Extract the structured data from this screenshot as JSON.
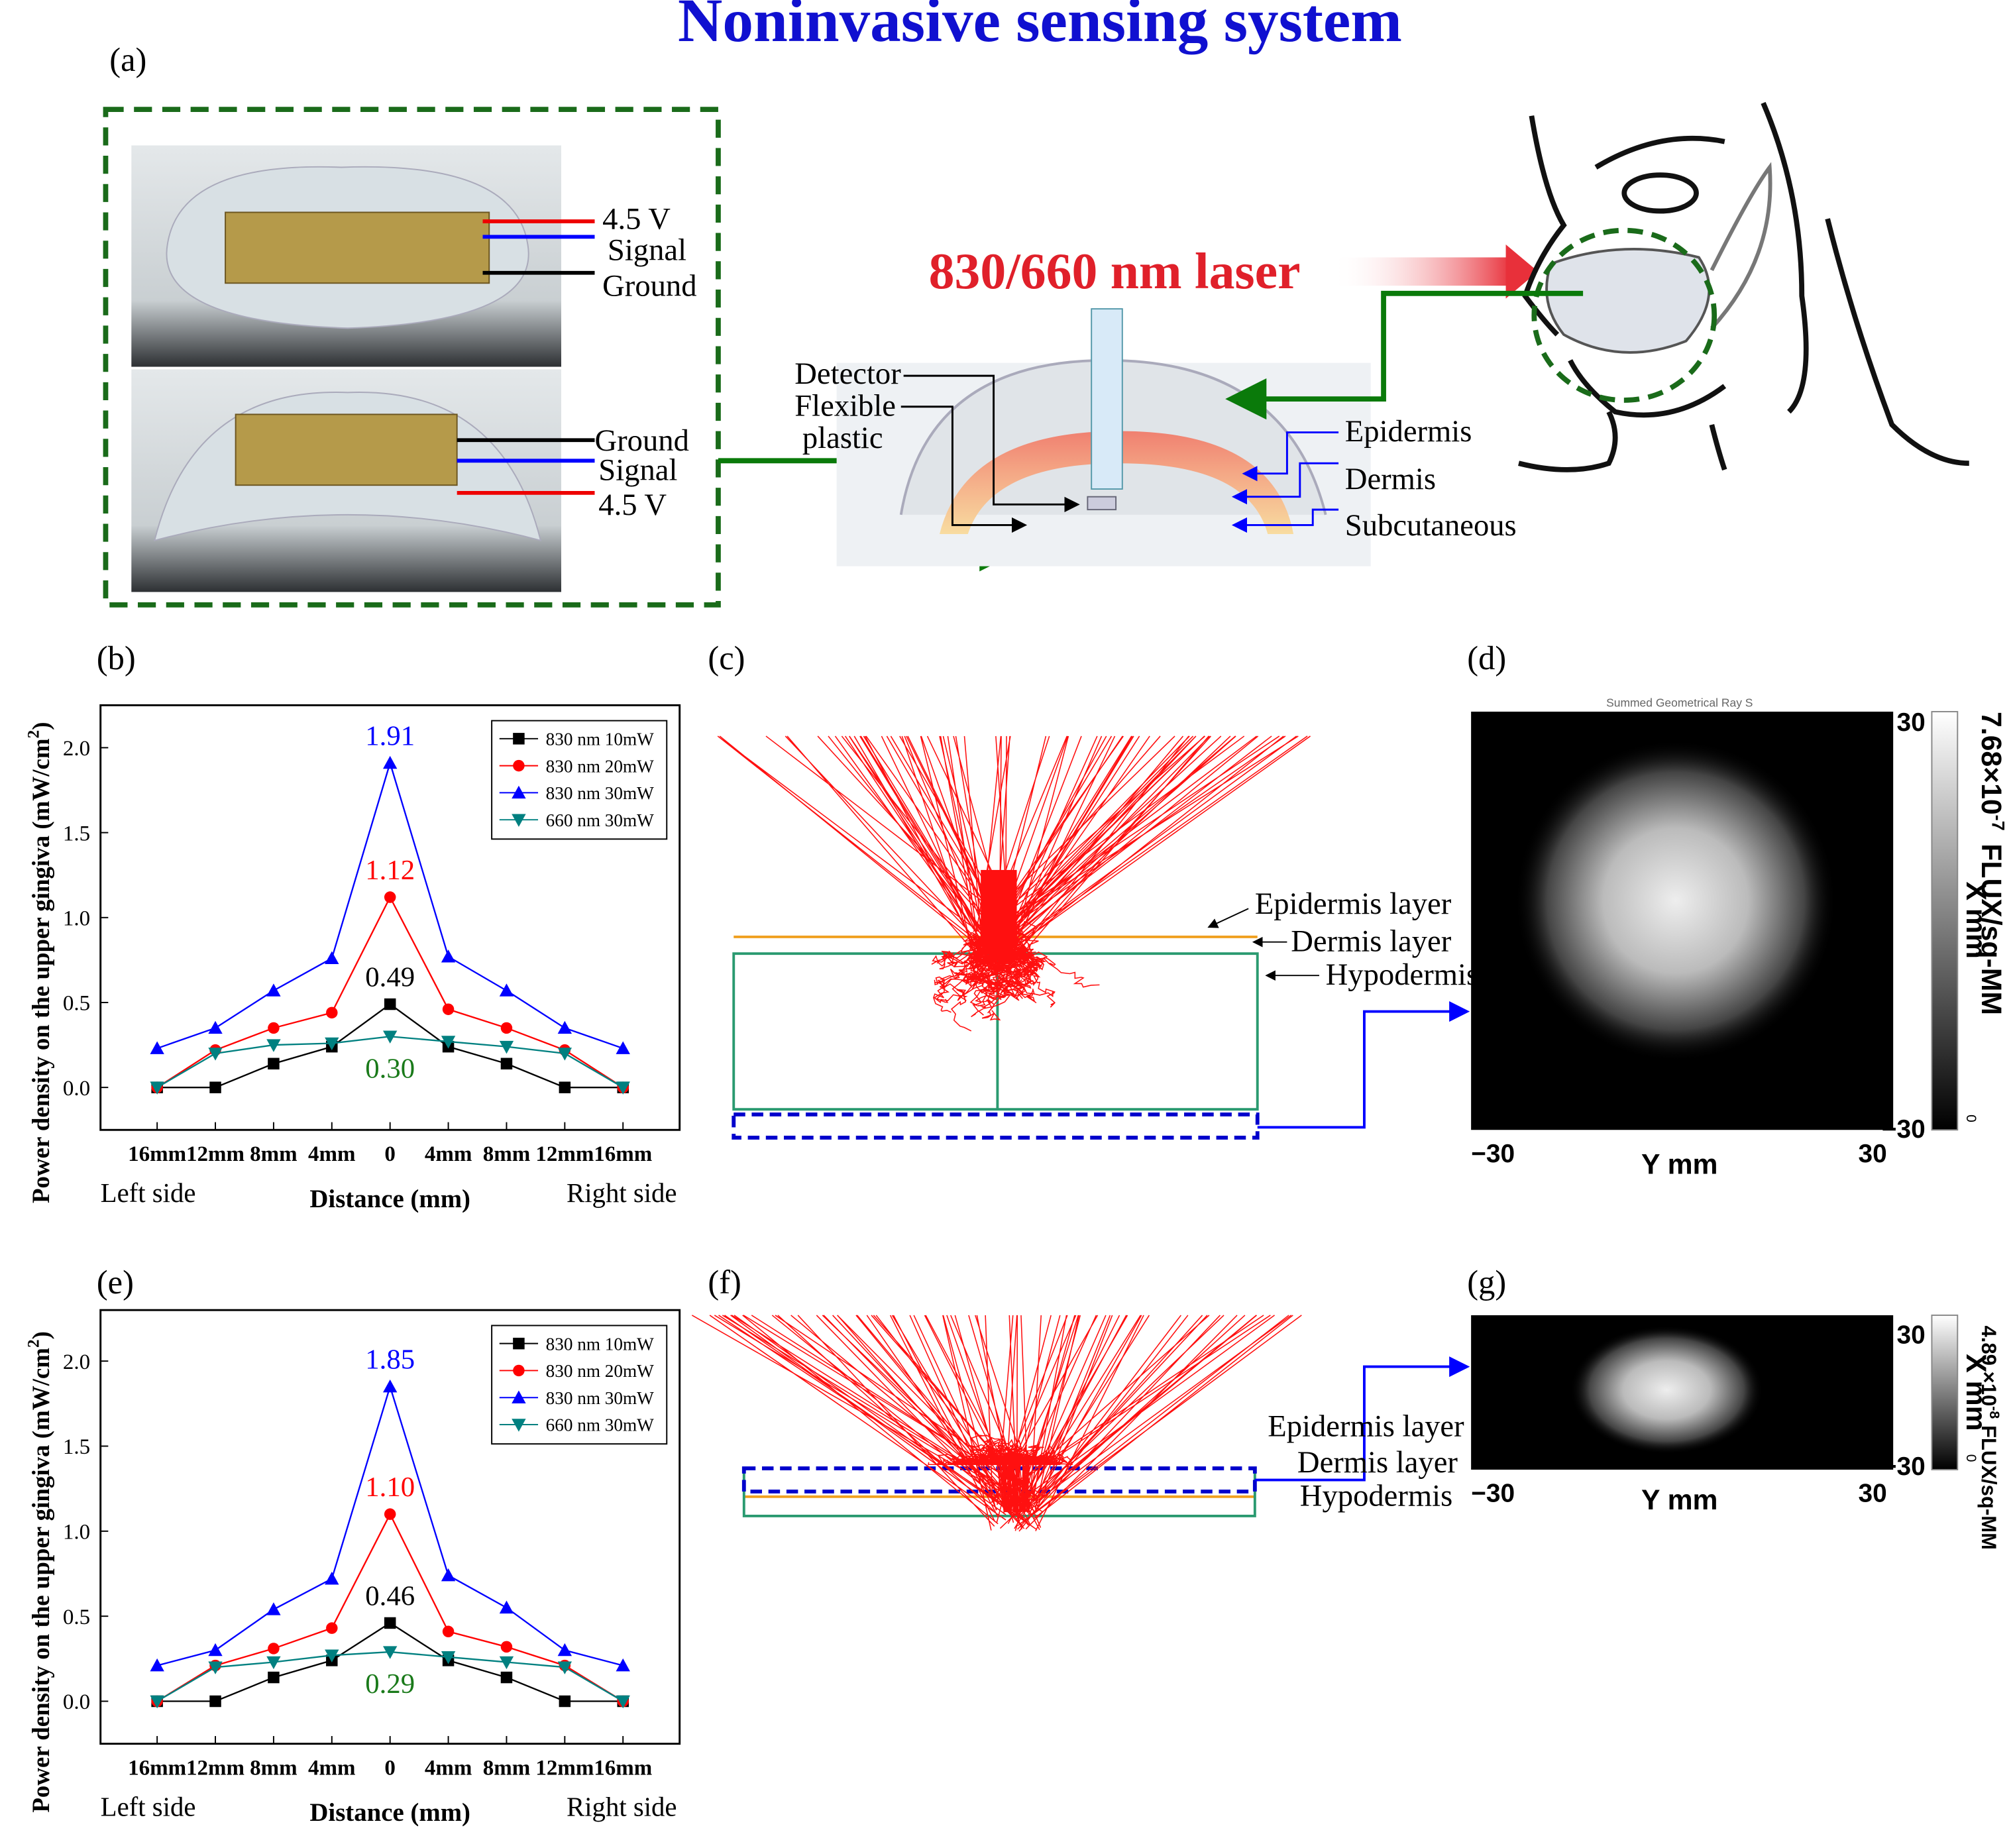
{
  "title": "Noninvasive sensing system",
  "panel_labels": [
    "(a)",
    "(b)",
    "(c)",
    "(d)",
    "(e)",
    "(f)",
    "(g)"
  ],
  "panel_a": {
    "top_wires": [
      "4.5 V",
      "Signal",
      "Ground"
    ],
    "bottom_wires": [
      "Ground",
      "Signal",
      "4.5 V"
    ],
    "laser": "830/660 nm laser",
    "detector": "Detector",
    "flexible": "Flexible",
    "plastic": "plastic",
    "layers": [
      "Epidermis",
      "Dermis",
      "Subcutaneous"
    ]
  },
  "ray_panels": [
    {
      "layers": [
        "Epidermis layer",
        "Dermis layer",
        "Hypodermis"
      ]
    },
    {
      "layers": [
        "Epidermis layer",
        "Dermis layer",
        "Hypodermis"
      ]
    }
  ],
  "detector_panels": [
    {
      "title": "Summed Geometrical Ray S",
      "x_ticks": [
        "−30",
        "30"
      ],
      "y_ticks": [
        "30",
        "−30"
      ],
      "x_label": "Y mm",
      "y_label": "X mm",
      "scale_mantissa": "7.68×10",
      "scale_exponent": "-7",
      "scale_unit": "FLUX/sq-MM",
      "scale_zero": "0"
    },
    {
      "x_ticks": [
        "−30",
        "30"
      ],
      "y_ticks": [
        "30",
        "−30"
      ],
      "x_label": "Y mm",
      "y_label": "X mm",
      "scale_mantissa": "4.89 ×10",
      "scale_exponent": "-8",
      "scale_unit": "FLUX/sq-MM",
      "scale_zero": "0"
    }
  ],
  "chart_data": [
    {
      "type": "line",
      "y_label": "Power density on the upper gingiva (mW/cm",
      "y_label_sup": "2",
      "y_label_end": ")",
      "x_label": "Distance (mm)",
      "side_labels": [
        "Left side",
        "Right side"
      ],
      "categories": [
        "16mm",
        "12mm",
        "8mm",
        "4mm",
        "0",
        "4mm",
        "8mm",
        "12mm",
        "16mm"
      ],
      "ylim": [
        -0.25,
        2.25
      ],
      "yticks": [
        {
          "value": 0,
          "label": "0.0"
        },
        0.5,
        {
          "value": 1,
          "label": "1.0"
        },
        1.5,
        {
          "value": 2,
          "label": "2.0"
        }
      ],
      "legend": "upper right",
      "series": [
        {
          "name": "830 nm 10mW",
          "color": "#000000",
          "marker": "square",
          "label_color": "#000000",
          "label_position": "above",
          "values": [
            0,
            0,
            0.14,
            0.24,
            0.49,
            0.24,
            0.14,
            0,
            0
          ],
          "value_labels": [
            null,
            null,
            null,
            null,
            "0.49",
            null,
            null,
            null,
            null
          ]
        },
        {
          "name": "830 nm 20mW",
          "color": "#ff0000",
          "marker": "circle",
          "label_color": "#ff0000",
          "label_position": "above",
          "values": [
            0,
            0.22,
            0.35,
            0.44,
            1.12,
            0.46,
            0.35,
            0.22,
            0
          ],
          "value_labels": [
            null,
            null,
            null,
            null,
            "1.12",
            null,
            null,
            null,
            null
          ]
        },
        {
          "name": "830 nm 30mW",
          "color": "#0000ff",
          "marker": "triangle-up",
          "label_color": "#0000ff",
          "label_position": "above",
          "values": [
            0.23,
            0.35,
            0.57,
            0.76,
            1.91,
            0.77,
            0.57,
            0.35,
            0.23
          ],
          "value_labels": [
            null,
            null,
            null,
            null,
            "1.91",
            null,
            null,
            null,
            null
          ]
        },
        {
          "name": "660 nm 30mW",
          "color": "#008080",
          "marker": "triangle-down",
          "label_color": "#1a7a1a",
          "label_position": "below",
          "values": [
            0,
            0.2,
            0.25,
            0.26,
            0.3,
            0.27,
            0.24,
            0.2,
            0
          ],
          "value_labels": [
            null,
            null,
            null,
            null,
            "0.30",
            null,
            null,
            null,
            null
          ]
        }
      ]
    },
    {
      "type": "line",
      "y_label": "Power density on the upper gingiva (mW/cm",
      "y_label_sup": "2",
      "y_label_end": ")",
      "x_label": "Distance (mm)",
      "side_labels": [
        "Left side",
        "Right side"
      ],
      "categories": [
        "16mm",
        "12mm",
        "8mm",
        "4mm",
        "0",
        "4mm",
        "8mm",
        "12mm",
        "16mm"
      ],
      "ylim": [
        -0.25,
        2.3
      ],
      "yticks": [
        {
          "value": 0,
          "label": "0.0"
        },
        0.5,
        {
          "value": 1,
          "label": "1.0"
        },
        1.5,
        {
          "value": 2,
          "label": "2.0"
        }
      ],
      "legend": "upper right",
      "series": [
        {
          "name": "830 nm 10mW",
          "color": "#000000",
          "marker": "square",
          "label_color": "#000000",
          "label_position": "above",
          "values": [
            0,
            0,
            0.14,
            0.24,
            0.46,
            0.24,
            0.14,
            0,
            0
          ],
          "value_labels": [
            null,
            null,
            null,
            null,
            "0.46",
            null,
            null,
            null,
            null
          ]
        },
        {
          "name": "830 nm 20mW",
          "color": "#ff0000",
          "marker": "circle",
          "label_color": "#ff0000",
          "label_position": "above",
          "values": [
            0,
            0.21,
            0.31,
            0.43,
            1.1,
            0.41,
            0.32,
            0.21,
            0
          ],
          "value_labels": [
            null,
            null,
            null,
            null,
            "1.10",
            null,
            null,
            null,
            null
          ]
        },
        {
          "name": "830 nm 30mW",
          "color": "#0000ff",
          "marker": "triangle-up",
          "label_color": "#0000ff",
          "label_position": "above",
          "values": [
            0.21,
            0.3,
            0.54,
            0.72,
            1.85,
            0.74,
            0.55,
            0.3,
            0.21
          ],
          "value_labels": [
            null,
            null,
            null,
            null,
            "1.85",
            null,
            null,
            null,
            null
          ]
        },
        {
          "name": "660 nm 30mW",
          "color": "#008080",
          "marker": "triangle-down",
          "label_color": "#1a7a1a",
          "label_position": "below",
          "values": [
            0,
            0.2,
            0.23,
            0.27,
            0.29,
            0.26,
            0.23,
            0.2,
            0
          ],
          "value_labels": [
            null,
            null,
            null,
            null,
            "0.29",
            null,
            null,
            null,
            null
          ]
        }
      ]
    }
  ]
}
